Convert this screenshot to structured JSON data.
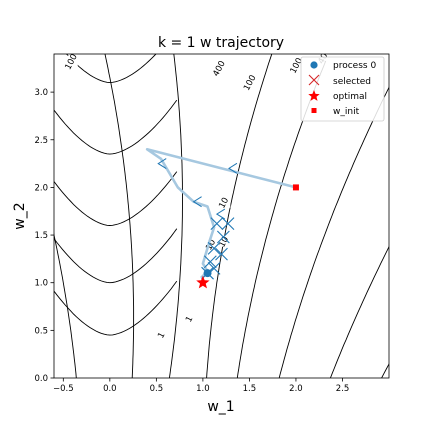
{
  "chart_data": {
    "type": "line",
    "title": "k = 1 w trajectory",
    "xlabel": "w_1",
    "ylabel": "w_2",
    "xlim": [
      -0.6,
      3.0
    ],
    "ylim": [
      0.0,
      3.4
    ],
    "x_ticks": [
      -0.5,
      0.0,
      0.5,
      1.0,
      1.5,
      2.0,
      2.5
    ],
    "x_tick_labels": [
      "−0.5",
      "0.0",
      "0.5",
      "1.0",
      "1.5",
      "2.0",
      "2.5"
    ],
    "y_ticks": [
      0.0,
      0.5,
      1.0,
      1.5,
      2.0,
      2.5,
      3.0
    ],
    "y_tick_labels": [
      "0.0",
      "0.5",
      "1.0",
      "1.5",
      "2.0",
      "2.5",
      "3.0"
    ],
    "legend": {
      "position": "top-right",
      "entries": [
        {
          "label": "process 0",
          "marker": "circle",
          "color": "#1f77b4"
        },
        {
          "label": "selected",
          "marker": "x",
          "color": "#d62728"
        },
        {
          "label": "optimal",
          "marker": "star",
          "color": "#ff0000"
        },
        {
          "label": "w_init",
          "marker": "square",
          "color": "#ff0000"
        }
      ]
    },
    "contour_labels": [
      {
        "text": "1",
        "x": 0.55,
        "y": 0.45
      },
      {
        "text": "1",
        "x": 0.85,
        "y": 0.62
      },
      {
        "text": "10",
        "x": 1.08,
        "y": 1.4
      },
      {
        "text": "10",
        "x": 1.22,
        "y": 1.43
      },
      {
        "text": "10",
        "x": 1.22,
        "y": 1.84
      },
      {
        "text": "100",
        "x": -0.42,
        "y": 3.32
      },
      {
        "text": "100",
        "x": 1.5,
        "y": 3.1
      },
      {
        "text": "100",
        "x": 2.0,
        "y": 3.28
      },
      {
        "text": "400",
        "x": 1.17,
        "y": 3.25
      },
      {
        "text": "400",
        "x": 2.3,
        "y": 3.38
      }
    ],
    "trajectory": {
      "name": "process 0",
      "color": "#a6c8e0",
      "points": [
        {
          "x": 2.0,
          "y": 2.0
        },
        {
          "x": 0.4,
          "y": 2.4
        },
        {
          "x": 0.55,
          "y": 2.3
        },
        {
          "x": 0.73,
          "y": 2.0
        },
        {
          "x": 0.9,
          "y": 1.85
        },
        {
          "x": 1.05,
          "y": 1.8
        },
        {
          "x": 1.12,
          "y": 1.58
        },
        {
          "x": 1.07,
          "y": 1.43
        },
        {
          "x": 1.0,
          "y": 1.2
        },
        {
          "x": 1.05,
          "y": 1.12
        },
        {
          "x": 0.98,
          "y": 1.05
        }
      ],
      "arrow_points": [
        {
          "x": 1.28,
          "y": 2.2
        },
        {
          "x": 0.52,
          "y": 2.25
        },
        {
          "x": 0.9,
          "y": 1.85
        },
        {
          "x": 1.15,
          "y": 1.72
        }
      ]
    },
    "selected_points": [
      {
        "x": 1.27,
        "y": 1.62
      },
      {
        "x": 1.15,
        "y": 1.62
      },
      {
        "x": 1.22,
        "y": 1.48
      },
      {
        "x": 1.12,
        "y": 1.36
      },
      {
        "x": 1.2,
        "y": 1.3
      },
      {
        "x": 1.08,
        "y": 1.22
      },
      {
        "x": 1.12,
        "y": 1.15
      },
      {
        "x": 1.05,
        "y": 1.1
      }
    ],
    "optimal": {
      "x": 1.0,
      "y": 1.0
    },
    "w_init": {
      "x": 2.0,
      "y": 2.0
    }
  }
}
